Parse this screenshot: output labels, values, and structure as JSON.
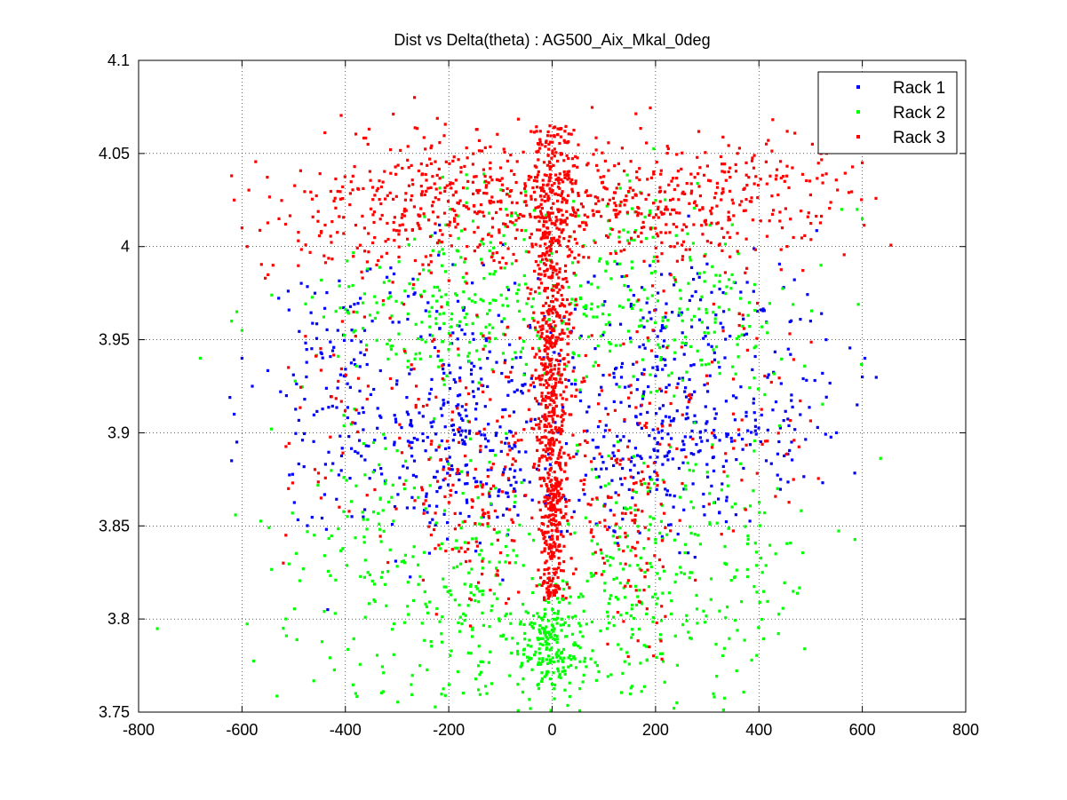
{
  "chart_data": {
    "type": "scatter",
    "title": "Dist vs Delta(theta) : AG500_Aix_Mkal_0deg",
    "xlabel": "",
    "ylabel": "",
    "xlim": [
      -800,
      800
    ],
    "ylim": [
      3.75,
      4.1
    ],
    "xticks": [
      -800,
      -600,
      -400,
      -200,
      0,
      200,
      400,
      600,
      800
    ],
    "xtick_labels": [
      "-800",
      "-600",
      "-400",
      "-200",
      "0",
      "200",
      "400",
      "600",
      "800"
    ],
    "yticks": [
      3.75,
      3.8,
      3.85,
      3.9,
      3.95,
      4.0,
      4.05,
      4.1
    ],
    "ytick_labels": [
      "3.75",
      "3.8",
      "3.85",
      "3.9",
      "3.95",
      "4",
      "4.05",
      "4.1"
    ],
    "grid": true,
    "legend_position": "top-right",
    "series": [
      {
        "name": "Rack 1",
        "color": "#0000ff",
        "marker": "dot",
        "clusters": [
          {
            "x": -170,
            "y": 3.895,
            "sx": 90,
            "sy": 0.028,
            "n": 260
          },
          {
            "x": 200,
            "y": 3.9,
            "sx": 110,
            "sy": 0.03,
            "n": 260
          },
          {
            "x": -420,
            "y": 3.92,
            "sx": 70,
            "sy": 0.035,
            "n": 120
          },
          {
            "x": 400,
            "y": 3.92,
            "sx": 80,
            "sy": 0.035,
            "n": 120
          },
          {
            "x": -200,
            "y": 3.96,
            "sx": 120,
            "sy": 0.02,
            "n": 70
          },
          {
            "x": 220,
            "y": 3.96,
            "sx": 120,
            "sy": 0.02,
            "n": 70
          }
        ],
        "points": [
          [
            -620,
            3.885
          ],
          [
            -615,
            3.91
          ],
          [
            -610,
            3.895
          ],
          [
            -600,
            3.94
          ],
          [
            -580,
            3.925
          ],
          [
            530,
            3.95
          ],
          [
            550,
            3.9
          ],
          [
            600,
            3.93
          ],
          [
            605,
            3.94
          ],
          [
            590,
            3.915
          ],
          [
            500,
            3.96
          ]
        ]
      },
      {
        "name": "Rack 2",
        "color": "#00ff00",
        "marker": "dot",
        "clusters": [
          {
            "x": 0,
            "y": 3.785,
            "sx": 30,
            "sy": 0.015,
            "n": 220
          },
          {
            "x": -150,
            "y": 3.815,
            "sx": 60,
            "sy": 0.035,
            "n": 160
          },
          {
            "x": 150,
            "y": 3.815,
            "sx": 60,
            "sy": 0.035,
            "n": 160
          },
          {
            "x": -350,
            "y": 3.83,
            "sx": 100,
            "sy": 0.04,
            "n": 150
          },
          {
            "x": 320,
            "y": 3.83,
            "sx": 100,
            "sy": 0.04,
            "n": 150
          },
          {
            "x": -200,
            "y": 3.96,
            "sx": 150,
            "sy": 0.02,
            "n": 200
          },
          {
            "x": 200,
            "y": 3.96,
            "sx": 150,
            "sy": 0.02,
            "n": 200
          },
          {
            "x": -150,
            "y": 4.01,
            "sx": 90,
            "sy": 0.015,
            "n": 50
          },
          {
            "x": 150,
            "y": 4.01,
            "sx": 90,
            "sy": 0.015,
            "n": 50
          }
        ],
        "points": [
          [
            -620,
            3.96
          ],
          [
            -610,
            3.965
          ],
          [
            -600,
            3.955
          ],
          [
            -520,
            3.795
          ],
          [
            -515,
            3.8
          ],
          [
            -380,
            3.76
          ],
          [
            0,
            3.765
          ],
          [
            600,
            4.015
          ],
          [
            590,
            4.02
          ],
          [
            560,
            4.02
          ],
          [
            520,
            3.99
          ]
        ]
      },
      {
        "name": "Rack 3",
        "color": "#ff0000",
        "marker": "dot",
        "column": {
          "x_center": 0,
          "x_sd": 22,
          "y_bottom": 3.81,
          "y_top": 4.065,
          "n": 900
        },
        "clusters": [
          {
            "x": -150,
            "y": 4.025,
            "sx": 120,
            "sy": 0.018,
            "n": 320
          },
          {
            "x": 170,
            "y": 4.025,
            "sx": 130,
            "sy": 0.018,
            "n": 320
          },
          {
            "x": -380,
            "y": 4.02,
            "sx": 90,
            "sy": 0.02,
            "n": 110
          },
          {
            "x": 400,
            "y": 4.025,
            "sx": 90,
            "sy": 0.018,
            "n": 110
          },
          {
            "x": -150,
            "y": 3.9,
            "sx": 90,
            "sy": 0.035,
            "n": 140
          },
          {
            "x": 140,
            "y": 3.89,
            "sx": 90,
            "sy": 0.035,
            "n": 140
          },
          {
            "x": -140,
            "y": 3.85,
            "sx": 40,
            "sy": 0.025,
            "n": 60
          },
          {
            "x": 160,
            "y": 3.84,
            "sx": 40,
            "sy": 0.025,
            "n": 60
          },
          {
            "x": -400,
            "y": 3.93,
            "sx": 60,
            "sy": 0.04,
            "n": 50
          },
          {
            "x": 380,
            "y": 3.92,
            "sx": 60,
            "sy": 0.04,
            "n": 50
          }
        ],
        "points": [
          [
            -620,
            4.038
          ],
          [
            -615,
            4.025
          ],
          [
            -600,
            4.01
          ],
          [
            -590,
            4.0
          ],
          [
            -540,
            3.99
          ],
          [
            -515,
            3.845
          ],
          [
            -520,
            3.83
          ],
          [
            -510,
            3.87
          ],
          [
            520,
            4.05
          ],
          [
            540,
            4.052
          ],
          [
            560,
            4.055
          ],
          [
            600,
            4.045
          ]
        ]
      }
    ]
  }
}
